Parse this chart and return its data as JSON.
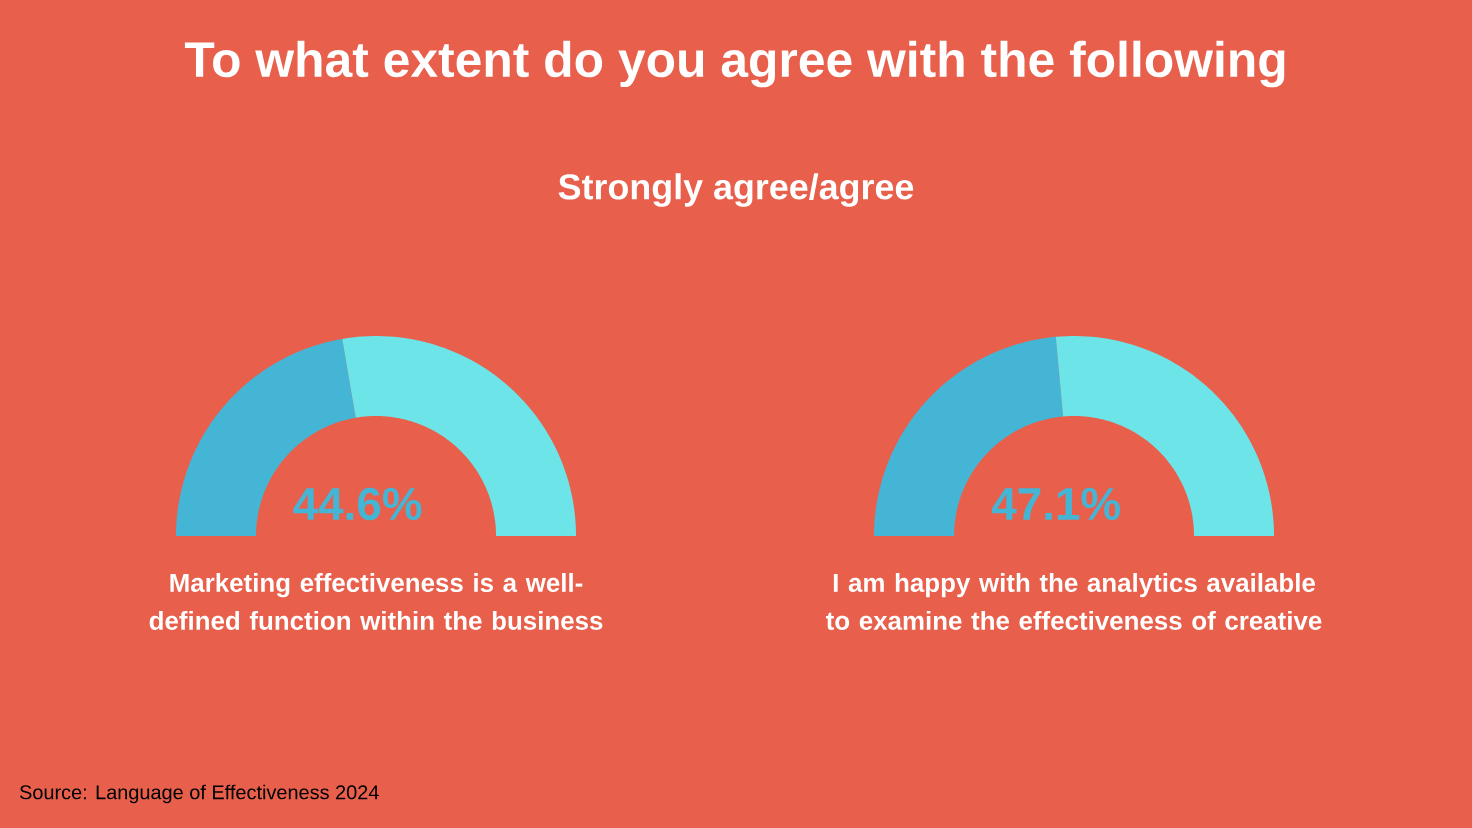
{
  "chart_data": [
    {
      "type": "donut",
      "title": "To what extent do you agree with the following",
      "subtitle": "Strongly agree/agree",
      "categories": [
        null,
        null
      ],
      "values": [
        44.6,
        55.4
      ],
      "colors": [
        "#45b5d6",
        "#6ce4e8"
      ],
      "value_labels": [
        "44.6%",
        null
      ],
      "xlabel": "Marketing effectiveness is a well-defined function within the business",
      "annotations": [
        "Source: Language of Effectiveness 2024"
      ]
    },
    {
      "type": "donut",
      "categories": [
        null,
        null
      ],
      "values": [
        47.1,
        52.9
      ],
      "colors": [
        "#45b5d6",
        "#6ce4e8"
      ],
      "value_labels": [
        "47.1%",
        null
      ],
      "xlabel": "I am happy with the analytics available to examine the effectiveness of creative"
    }
  ]
}
